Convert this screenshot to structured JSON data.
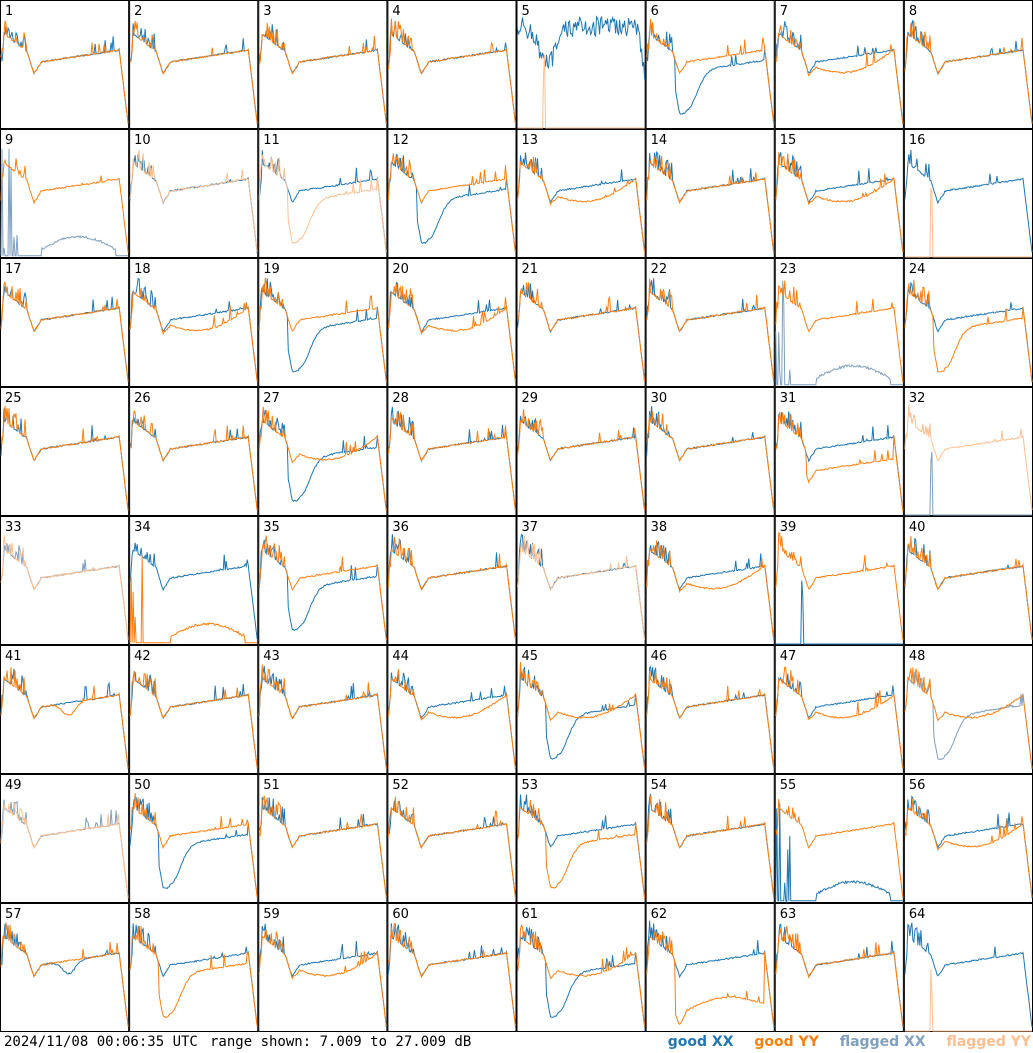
{
  "chart_data": {
    "type": "line",
    "layout": "8x8 panel grid, one panel per tile",
    "panels": [
      "1",
      "2",
      "3",
      "4",
      "5",
      "6",
      "7",
      "8",
      "9",
      "10",
      "11",
      "12",
      "13",
      "14",
      "15",
      "16",
      "17",
      "18",
      "19",
      "20",
      "21",
      "22",
      "23",
      "24",
      "25",
      "26",
      "27",
      "28",
      "29",
      "30",
      "31",
      "32",
      "33",
      "34",
      "35",
      "36",
      "37",
      "38",
      "39",
      "40",
      "41",
      "42",
      "43",
      "44",
      "45",
      "46",
      "47",
      "48",
      "49",
      "50",
      "51",
      "52",
      "53",
      "54",
      "55",
      "56",
      "57",
      "58",
      "59",
      "60",
      "61",
      "62",
      "63",
      "64"
    ],
    "ylim_db": [
      7.009,
      27.009
    ],
    "series": [
      {
        "name": "good XX",
        "color": "#1f77b4"
      },
      {
        "name": "good YY",
        "color": "#ff7f0e"
      },
      {
        "name": "flagged XX",
        "color": "#7f9fbf"
      },
      {
        "name": "flagged YY",
        "color": "#ffbf8f"
      }
    ],
    "panel_profiles": {
      "5": {
        "xx": "spiky-dip",
        "yy": "spike-only",
        "yy_flagged": true
      },
      "6": {
        "xx": "dip-low",
        "yy": "normal"
      },
      "7": {
        "xx": "normal",
        "yy": "sag"
      },
      "9": {
        "xx": "comb",
        "yy": "normal",
        "xx_flagged": true
      },
      "10": {
        "xx": "normal",
        "yy": "normal",
        "yy_flagged": true
      },
      "11": {
        "xx": "normal",
        "yy": "dip-low",
        "yy_flagged": true
      },
      "12": {
        "xx": "dip-low",
        "yy": "normal"
      },
      "13": {
        "xx": "normal",
        "yy": "sag"
      },
      "15": {
        "xx": "normal",
        "yy": "sag"
      },
      "16": {
        "xx": "normal",
        "yy": "spike-only",
        "yy_flagged": true
      },
      "18": {
        "xx": "normal",
        "yy": "sag"
      },
      "19": {
        "xx": "dip-low",
        "yy": "normal"
      },
      "20": {
        "xx": "normal",
        "yy": "sag"
      },
      "23": {
        "xx": "comb",
        "yy": "normal",
        "xx_flagged": true
      },
      "24": {
        "xx": "normal",
        "yy": "dip-low"
      },
      "27": {
        "xx": "dip-low",
        "yy": "sag"
      },
      "31": {
        "xx": "normal",
        "yy": "offset-low"
      },
      "32": {
        "xx": "spike-only",
        "yy": "normal",
        "xx_flagged": true,
        "yy_flagged": true
      },
      "33": {
        "xx": "normal",
        "yy": "normal",
        "xx_flagged": true,
        "yy_flagged": true
      },
      "34": {
        "xx": "normal",
        "yy": "comb"
      },
      "35": {
        "xx": "dip-low",
        "yy": "normal"
      },
      "37": {
        "xx": "normal",
        "yy": "normal",
        "yy_flagged": true
      },
      "38": {
        "xx": "normal",
        "yy": "sag"
      },
      "39": {
        "xx": "spike-only",
        "yy": "normal"
      },
      "41": {
        "xx": "normal",
        "yy": "small-dip"
      },
      "44": {
        "xx": "normal",
        "yy": "sag"
      },
      "45": {
        "xx": "dip-low",
        "yy": "sag"
      },
      "47": {
        "xx": "normal",
        "yy": "sag"
      },
      "48": {
        "xx": "dip-low",
        "yy": "sag",
        "xx_flagged": true
      },
      "49": {
        "xx": "normal",
        "yy": "normal",
        "xx_flagged": true,
        "yy_flagged": true
      },
      "50": {
        "xx": "dip-low",
        "yy": "normal"
      },
      "53": {
        "xx": "normal",
        "yy": "dip-low"
      },
      "55": {
        "xx": "comb",
        "yy": "normal"
      },
      "56": {
        "xx": "normal",
        "yy": "sag"
      },
      "57": {
        "xx": "small-dip",
        "yy": "normal"
      },
      "58": {
        "xx": "normal",
        "yy": "dip-low"
      },
      "59": {
        "xx": "normal",
        "yy": "sag"
      },
      "61": {
        "xx": "dip-low",
        "yy": "sag"
      },
      "62": {
        "xx": "normal",
        "yy": "deep-low"
      },
      "64": {
        "xx": "normal",
        "yy": "spike-only",
        "yy_flagged": true
      }
    }
  },
  "footer": {
    "timestamp": "2024/11/08 00:06:35 UTC",
    "range_text": "range shown: 7.009 to 27.009 dB",
    "legend": {
      "good_xx": "good XX",
      "good_yy": "good YY",
      "flagged_xx": "flagged XX",
      "flagged_yy": "flagged YY"
    }
  }
}
